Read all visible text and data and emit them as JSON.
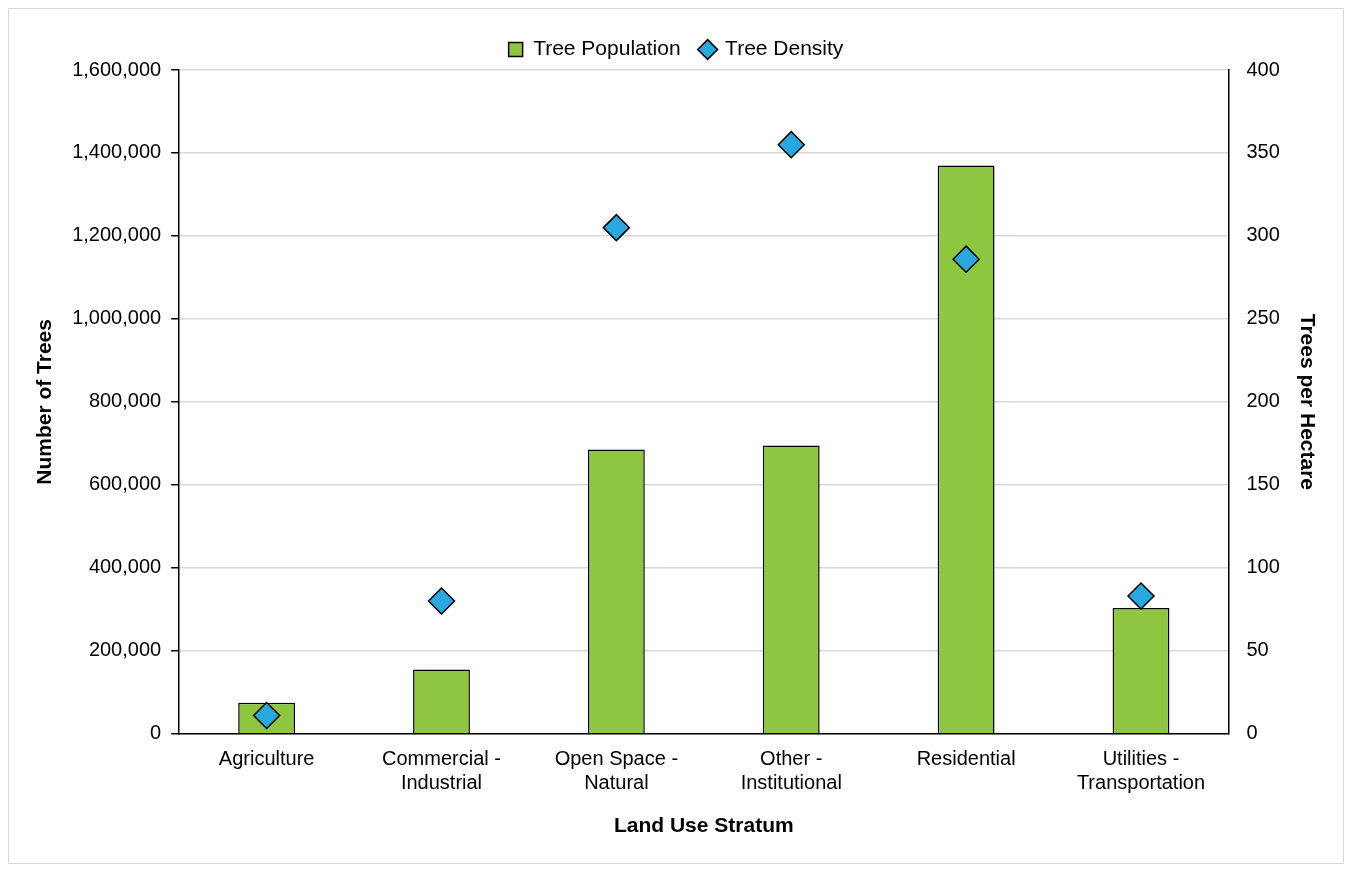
{
  "chart_data": {
    "type": "bar",
    "xlabel": "Land Use Stratum",
    "ylabel": "Number of Trees",
    "y2label": "Trees per Hectare",
    "categories": [
      "Agriculture",
      "Commercial - Industrial",
      "Open Space - Natural",
      "Other - Institutional",
      "Residential",
      "Utilities - Transportation"
    ],
    "series": [
      {
        "name": "Tree Population",
        "color": "#8dc63f",
        "values": [
          75000,
          155000,
          685000,
          695000,
          1370000,
          303000
        ]
      },
      {
        "name": "Tree Density",
        "type": "scatter",
        "axis": "y2",
        "color": "#29a8e0",
        "marker": "diamond",
        "values": [
          11,
          80,
          305,
          355,
          286,
          83
        ]
      }
    ],
    "ylim": [
      0,
      1600000
    ],
    "yticks": [
      0,
      {
        "value": 200000,
        "label": "200,000"
      },
      {
        "value": 400000,
        "label": "400,000"
      },
      {
        "value": 600000,
        "label": "600,000"
      },
      {
        "value": 800000,
        "label": "800,000"
      },
      {
        "value": 1000000,
        "label": "1,000,000"
      },
      {
        "value": 1200000,
        "label": "1,200,000"
      },
      {
        "value": 1400000,
        "label": "1,400,000"
      },
      {
        "value": 1600000,
        "label": "1,600,000"
      }
    ],
    "y2lim": [
      0,
      400
    ],
    "y2ticks": [
      0,
      50,
      100,
      150,
      200,
      250,
      300,
      350,
      400
    ],
    "grid": "y",
    "legend": "top"
  }
}
